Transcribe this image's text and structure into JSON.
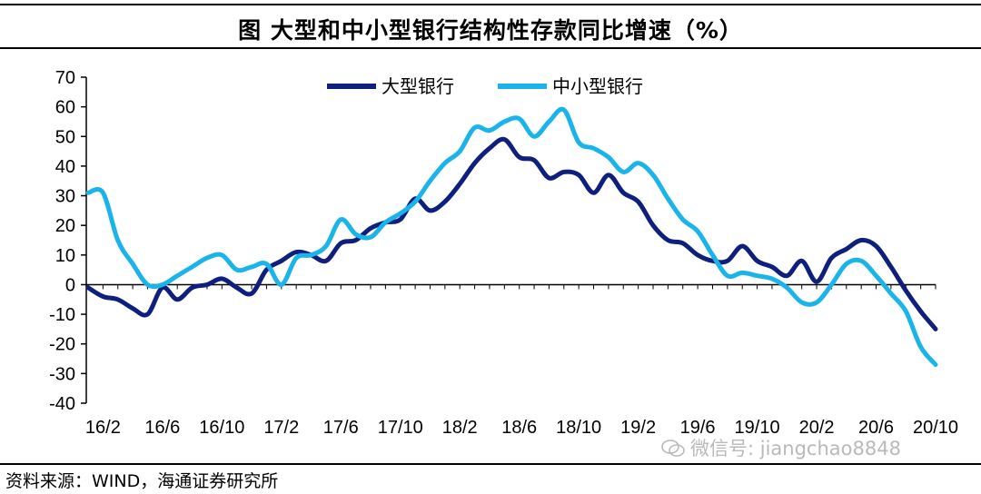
{
  "title": "图 大型和中小型银行结构性存款同比增速（%）",
  "source": "资料来源：WIND，海通证券研究所",
  "watermark": "微信号: jiangchao8848",
  "chart_data": {
    "type": "line",
    "title": "图 大型和中小型银行结构性存款同比增速（%）",
    "xlabel": "",
    "ylabel": "",
    "ylim": [
      -40,
      70
    ],
    "yticks": [
      70,
      60,
      50,
      40,
      30,
      20,
      10,
      0,
      -10,
      -20,
      -30,
      -40
    ],
    "x": [
      "16/1",
      "16/2",
      "16/3",
      "16/4",
      "16/5",
      "16/6",
      "16/7",
      "16/8",
      "16/9",
      "16/10",
      "16/11",
      "16/12",
      "17/1",
      "17/2",
      "17/3",
      "17/4",
      "17/5",
      "17/6",
      "17/7",
      "17/8",
      "17/9",
      "17/10",
      "17/11",
      "17/12",
      "18/1",
      "18/2",
      "18/3",
      "18/4",
      "18/5",
      "18/6",
      "18/7",
      "18/8",
      "18/9",
      "18/10",
      "18/11",
      "18/12",
      "19/1",
      "19/2",
      "19/3",
      "19/4",
      "19/5",
      "19/6",
      "19/7",
      "19/8",
      "19/9",
      "19/10",
      "19/11",
      "19/12",
      "20/1",
      "20/2",
      "20/3",
      "20/4",
      "20/5",
      "20/6",
      "20/7",
      "20/8",
      "20/9",
      "20/10"
    ],
    "xticks": [
      "16/2",
      "16/6",
      "16/10",
      "17/2",
      "17/6",
      "17/10",
      "18/2",
      "18/6",
      "18/10",
      "19/2",
      "19/6",
      "19/10",
      "20/2",
      "20/6",
      "20/10"
    ],
    "grid": false,
    "legend_position": "top",
    "series": [
      {
        "name": "大型银行",
        "color": "#0e1f7d",
        "values": [
          -1,
          -4,
          -5,
          -8,
          -10,
          -1,
          -5,
          -1,
          0,
          2,
          -1,
          -3,
          5,
          8,
          11,
          10,
          8,
          14,
          15,
          19,
          21,
          22,
          29,
          25,
          28,
          34,
          41,
          46,
          49,
          43,
          42,
          36,
          38,
          37,
          31,
          37,
          31,
          28,
          20,
          15,
          14,
          10,
          8,
          8,
          13,
          8,
          6,
          3,
          8,
          1,
          9,
          12,
          15,
          13,
          6,
          -2,
          -9,
          -15
        ]
      },
      {
        "name": "中小型银行",
        "color": "#1bb4ea",
        "values": [
          31,
          31,
          15,
          7,
          0,
          0,
          3,
          6,
          9,
          10,
          5,
          6,
          7,
          0,
          9,
          10,
          13,
          22,
          17,
          16,
          21,
          24,
          28,
          35,
          41,
          45,
          53,
          52,
          55,
          56,
          50,
          55,
          59,
          48,
          46,
          43,
          38,
          41,
          37,
          29,
          22,
          18,
          10,
          3,
          4,
          3,
          2,
          -1,
          -6,
          -6,
          0,
          7,
          8,
          3,
          -3,
          -9,
          -21,
          -27
        ]
      }
    ]
  }
}
